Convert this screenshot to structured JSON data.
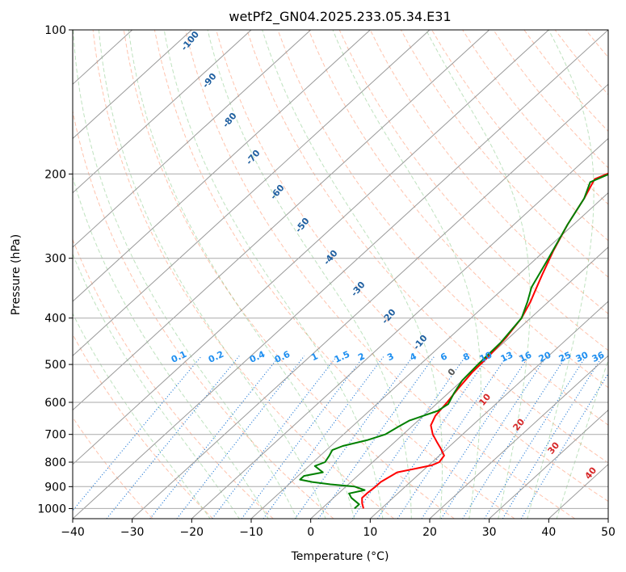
{
  "chart_data": {
    "type": "line",
    "title": "wetPf2_GN04.2025.233.05.34.E31",
    "xlabel": "Temperature (°C)",
    "ylabel": "Pressure (hPa)",
    "xlim": [
      -40,
      50
    ],
    "ylim": [
      1050,
      100
    ],
    "y_scale": "log",
    "x_ticks": [
      -40,
      -30,
      -20,
      -10,
      0,
      10,
      20,
      30,
      40,
      50
    ],
    "x_tick_labels": [
      "−40",
      "−30",
      "−20",
      "−10",
      "0",
      "10",
      "20",
      "30",
      "40",
      "50"
    ],
    "y_ticks": [
      100,
      200,
      300,
      400,
      500,
      600,
      700,
      800,
      900,
      1000
    ],
    "y_tick_labels": [
      "100",
      "200",
      "300",
      "400",
      "500",
      "600",
      "700",
      "800",
      "900",
      "1000"
    ],
    "grid": true,
    "series": [
      {
        "color": "#ff0000",
        "points": [
          [
            7.0,
            1000
          ],
          [
            5.8,
            975
          ],
          [
            4.8,
            950
          ],
          [
            4.8,
            925
          ],
          [
            5.0,
            900
          ],
          [
            5.0,
            880
          ],
          [
            5.5,
            860
          ],
          [
            6.0,
            840
          ],
          [
            8.5,
            825
          ],
          [
            10.5,
            812
          ],
          [
            11.2,
            800
          ],
          [
            10.8,
            775
          ],
          [
            9.0,
            750
          ],
          [
            7.0,
            725
          ],
          [
            5.0,
            700
          ],
          [
            3.0,
            670
          ],
          [
            2.0,
            640
          ],
          [
            1.5,
            600
          ],
          [
            0.8,
            560
          ],
          [
            0.2,
            520
          ],
          [
            0.0,
            480
          ],
          [
            -0.5,
            440
          ],
          [
            -1.5,
            400
          ],
          [
            -3.0,
            370
          ],
          [
            -4.3,
            350
          ],
          [
            -6.0,
            325
          ],
          [
            -8.5,
            290
          ],
          [
            -11.0,
            255
          ],
          [
            -13.0,
            225
          ],
          [
            -14.8,
            205
          ],
          [
            -13.0,
            197
          ],
          [
            -10.0,
            192
          ],
          [
            -6.5,
            186
          ],
          [
            -2.0,
            176
          ],
          [
            2.0,
            164
          ],
          [
            6.0,
            150
          ],
          [
            8.5,
            140
          ],
          [
            11.0,
            130
          ],
          [
            13.5,
            120
          ],
          [
            15.5,
            112
          ],
          [
            17.0,
            106
          ],
          [
            18.0,
            101
          ]
        ]
      },
      {
        "color": "#008000",
        "points": [
          [
            5.5,
            1000
          ],
          [
            5.5,
            980
          ],
          [
            3.0,
            950
          ],
          [
            1.8,
            930
          ],
          [
            3.8,
            915
          ],
          [
            1.5,
            900
          ],
          [
            -3.0,
            890
          ],
          [
            -6.5,
            880
          ],
          [
            -9.0,
            870
          ],
          [
            -9.0,
            855
          ],
          [
            -6.5,
            840
          ],
          [
            -7.5,
            830
          ],
          [
            -9.0,
            815
          ],
          [
            -8.0,
            800
          ],
          [
            -8.5,
            775
          ],
          [
            -9.0,
            755
          ],
          [
            -8.0,
            740
          ],
          [
            -5.0,
            720
          ],
          [
            -3.0,
            700
          ],
          [
            -2.2,
            675
          ],
          [
            -1.5,
            655
          ],
          [
            0.0,
            640
          ],
          [
            1.5,
            625
          ],
          [
            2.0,
            605
          ],
          [
            1.0,
            575
          ],
          [
            0.0,
            540
          ],
          [
            -0.3,
            500
          ],
          [
            -0.5,
            450
          ],
          [
            -1.5,
            400
          ],
          [
            -3.5,
            370
          ],
          [
            -5.5,
            345
          ],
          [
            -8.0,
            300
          ],
          [
            -11.0,
            255
          ],
          [
            -13.0,
            225
          ],
          [
            -15.0,
            208
          ],
          [
            -13.5,
            201
          ],
          [
            -12.2,
            195
          ],
          [
            -12.0,
            188
          ],
          [
            -12.8,
            182
          ],
          [
            -12.0,
            175
          ],
          [
            -10.5,
            165
          ],
          [
            -10.5,
            153
          ],
          [
            -10.0,
            145
          ],
          [
            -8.0,
            136
          ],
          [
            -5.5,
            128
          ],
          [
            -4.0,
            122
          ],
          [
            -3.0,
            116
          ],
          [
            -2.0,
            110
          ],
          [
            -1.0,
            104
          ],
          [
            0.0,
            100
          ]
        ]
      }
    ],
    "dry_adiabat_labels": [
      "-100",
      "-90",
      "-80",
      "-70",
      "-60",
      "-50",
      "-40",
      "-30",
      "-20",
      "-10",
      "0",
      "10",
      "20",
      "30",
      "40"
    ],
    "mixing_ratio_labels": [
      "0.1",
      "0.2",
      "0.4",
      "0.6",
      "1",
      "1.5",
      "2",
      "3",
      "4",
      "6",
      "8",
      "10",
      "13",
      "16",
      "20",
      "25",
      "30",
      "36"
    ]
  }
}
